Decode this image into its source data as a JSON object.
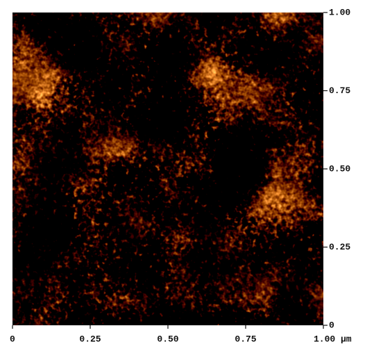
{
  "image": {
    "x_axis": {
      "ticks": [
        "0",
        "0.25",
        "0.50",
        "0.75",
        "1.00 μm"
      ]
    },
    "y_axis": {
      "ticks": [
        "1.00",
        "0.75",
        "0.50",
        "0.25",
        "0"
      ]
    }
  }
}
